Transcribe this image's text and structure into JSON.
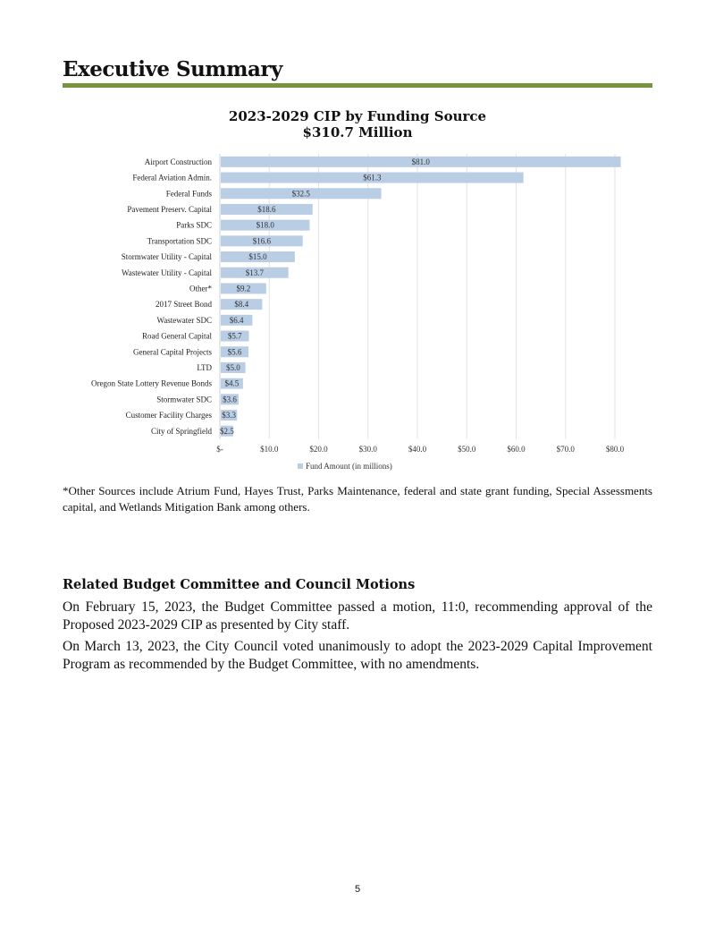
{
  "heading": "Executive Summary",
  "chart_data": {
    "type": "bar",
    "orientation": "horizontal",
    "title": "2023-2029  CIP by Funding Source",
    "subtitle": "$310.7 Million",
    "categories": [
      "Airport Construction",
      "Federal Aviation Admin.",
      "Federal Funds",
      "Pavement Preserv. Capital",
      "Parks SDC",
      "Transportation SDC",
      "Stormwater Utility - Capital",
      "Wastewater Utility - Capital",
      "Other*",
      "2017 Street Bond",
      "Wastewater SDC",
      "Road General Capital",
      "General Capital Projects",
      "LTD",
      "Oregon State Lottery Revenue Bonds",
      "Stormwater SDC",
      "Customer Facility Charges",
      "City of Springfield"
    ],
    "values": [
      81.0,
      61.3,
      32.5,
      18.6,
      18.0,
      16.6,
      15.0,
      13.7,
      9.2,
      8.4,
      6.4,
      5.7,
      5.6,
      5.0,
      4.5,
      3.6,
      3.3,
      2.5
    ],
    "data_labels": [
      "$81.0",
      "$61.3",
      "$32.5",
      "$18.6",
      "$18.0",
      "$16.6",
      "$15.0",
      "$13.7",
      "$9.2",
      "$8.4",
      "$6.4",
      "$5.7",
      "$5.6",
      "$5.0",
      "$4.5",
      "$3.6",
      "$3.3",
      "$2.5"
    ],
    "xticks": [
      0,
      10,
      20,
      30,
      40,
      50,
      60,
      70,
      80
    ],
    "xtick_labels": [
      "$-",
      "$10.0",
      "$20.0",
      "$30.0",
      "$40.0",
      "$50.0",
      "$60.0",
      "$70.0",
      "$80.0"
    ],
    "xlim": [
      0,
      80
    ],
    "grid": true,
    "legend": {
      "label": "Fund Amount (in millions)",
      "placement": "bottom"
    },
    "bar_color": "#b9cde5"
  },
  "note": "*Other Sources include Atrium Fund, Hayes Trust, Parks Maintenance, federal and state grant funding, Special Assessments capital, and Wetlands Mitigation Bank among others.",
  "motions": {
    "heading": "Related Budget Committee and Council Motions",
    "p1": "On February 15, 2023, the Budget Committee passed a motion, 11:0, recommending approval of the Proposed 2023-2029 CIP as presented by City staff.",
    "p2": "On March 13, 2023, the City Council voted unanimously to adopt the 2023-2029 Capital Improvement Program as recommended by the Budget Committee, with no amendments."
  },
  "page_number": "5"
}
